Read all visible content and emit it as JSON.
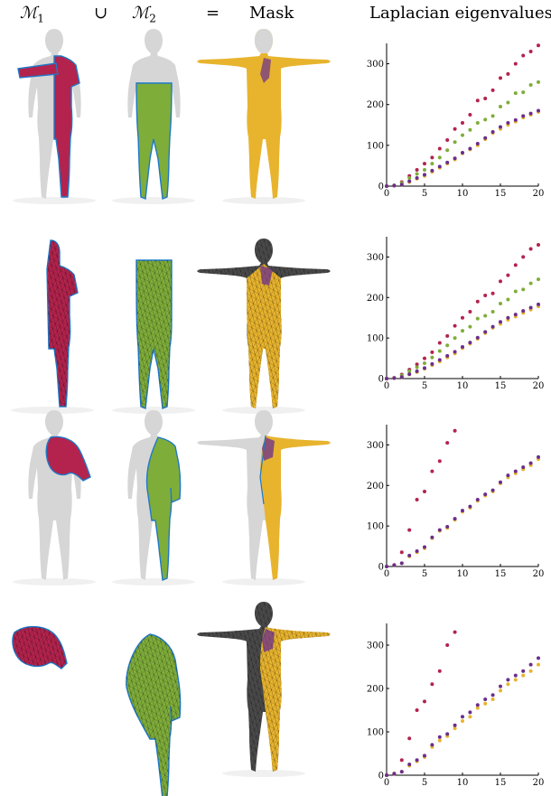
{
  "header": {
    "m1": "ℳ",
    "m1_sub": "1",
    "union": "∪",
    "m2": "ℳ",
    "m2_sub": "2",
    "equals": "=",
    "mask": "Mask",
    "eigen": "Laplacian eigenvalues"
  },
  "colors": {
    "m1": "#b3234d",
    "m2": "#7fad3a",
    "mask": "#e8b42e",
    "union": "#6a2e8c",
    "boundary": "#1f78c8",
    "gray": "#d6d6d6",
    "wire": "#1a1a1a"
  },
  "icons": [
    "human-mannequin-icon"
  ],
  "chart_data": [
    {
      "type": "scatter",
      "xlim": [
        0,
        20
      ],
      "ylim": [
        0,
        350
      ],
      "xticks": [
        "0",
        "5",
        "10",
        "15",
        "20"
      ],
      "yticks": [
        "0",
        "100",
        "200",
        "300"
      ],
      "series": [
        {
          "color": "#b3234d",
          "x": [
            0,
            1,
            2,
            3,
            4,
            5,
            6,
            7,
            8,
            9,
            10,
            11,
            12,
            13,
            14,
            15,
            16,
            17,
            18,
            19,
            20
          ],
          "y": [
            0,
            2,
            10,
            25,
            40,
            55,
            70,
            92,
            113,
            140,
            155,
            175,
            210,
            215,
            235,
            265,
            275,
            300,
            320,
            330,
            345
          ]
        },
        {
          "color": "#7fad3a",
          "x": [
            0,
            1,
            2,
            3,
            4,
            5,
            6,
            7,
            8,
            9,
            10,
            11,
            12,
            13,
            14,
            15,
            16,
            17,
            18,
            19,
            20
          ],
          "y": [
            0,
            2,
            8,
            20,
            30,
            40,
            55,
            70,
            88,
            108,
            125,
            138,
            155,
            163,
            172,
            195,
            205,
            228,
            230,
            248,
            255
          ]
        },
        {
          "color": "#e8b42e",
          "x": [
            0,
            1,
            2,
            3,
            4,
            5,
            6,
            7,
            8,
            9,
            10,
            11,
            12,
            13,
            14,
            15,
            16,
            17,
            18,
            19,
            20
          ],
          "y": [
            0,
            1,
            4,
            10,
            18,
            25,
            35,
            45,
            55,
            65,
            80,
            90,
            100,
            115,
            130,
            140,
            150,
            158,
            168,
            175,
            182
          ]
        },
        {
          "color": "#6a2e8c",
          "x": [
            0,
            1,
            2,
            3,
            4,
            5,
            6,
            7,
            8,
            9,
            10,
            11,
            12,
            13,
            14,
            15,
            16,
            17,
            18,
            19,
            20
          ],
          "y": [
            0,
            1,
            4,
            12,
            20,
            28,
            38,
            48,
            58,
            68,
            82,
            92,
            104,
            118,
            133,
            145,
            155,
            162,
            172,
            178,
            185
          ]
        }
      ]
    },
    {
      "type": "scatter",
      "xlim": [
        0,
        20
      ],
      "ylim": [
        0,
        350
      ],
      "xticks": [
        "0",
        "5",
        "10",
        "15",
        "20"
      ],
      "yticks": [
        "0",
        "100",
        "200",
        "300"
      ],
      "series": [
        {
          "color": "#b3234d",
          "x": [
            0,
            1,
            2,
            3,
            4,
            5,
            6,
            7,
            8,
            9,
            10,
            11,
            12,
            13,
            14,
            15,
            16,
            17,
            18,
            19,
            20
          ],
          "y": [
            0,
            2,
            10,
            22,
            35,
            50,
            65,
            88,
            105,
            130,
            150,
            165,
            190,
            205,
            210,
            240,
            255,
            280,
            300,
            320,
            330
          ]
        },
        {
          "color": "#7fad3a",
          "x": [
            0,
            1,
            2,
            3,
            4,
            5,
            6,
            7,
            8,
            9,
            10,
            11,
            12,
            13,
            14,
            15,
            16,
            17,
            18,
            19,
            20
          ],
          "y": [
            0,
            2,
            8,
            18,
            28,
            38,
            52,
            68,
            82,
            100,
            118,
            128,
            148,
            155,
            165,
            185,
            195,
            215,
            220,
            235,
            245
          ]
        },
        {
          "color": "#e8b42e",
          "x": [
            0,
            1,
            2,
            3,
            4,
            5,
            6,
            7,
            8,
            9,
            10,
            11,
            12,
            13,
            14,
            15,
            16,
            17,
            18,
            19,
            20
          ],
          "y": [
            0,
            1,
            4,
            10,
            16,
            24,
            33,
            42,
            52,
            62,
            75,
            86,
            98,
            112,
            125,
            135,
            145,
            153,
            162,
            170,
            178
          ]
        },
        {
          "color": "#6a2e8c",
          "x": [
            0,
            1,
            2,
            3,
            4,
            5,
            6,
            7,
            8,
            9,
            10,
            11,
            12,
            13,
            14,
            15,
            16,
            17,
            18,
            19,
            20
          ],
          "y": [
            0,
            1,
            4,
            11,
            18,
            26,
            36,
            46,
            56,
            66,
            78,
            89,
            101,
            115,
            128,
            140,
            150,
            158,
            167,
            175,
            183
          ]
        }
      ]
    },
    {
      "type": "scatter",
      "xlim": [
        0,
        20
      ],
      "ylim": [
        0,
        350
      ],
      "xticks": [
        "0",
        "5",
        "10",
        "15",
        "20"
      ],
      "yticks": [
        "0",
        "100",
        "200",
        "300"
      ],
      "series": [
        {
          "color": "#b3234d",
          "x": [
            0,
            1,
            2,
            3,
            4,
            5,
            6,
            7,
            8,
            9
          ],
          "y": [
            0,
            4,
            35,
            90,
            165,
            185,
            235,
            260,
            305,
            335
          ]
        },
        {
          "color": "#e8b42e",
          "x": [
            0,
            1,
            2,
            3,
            4,
            5,
            6,
            7,
            8,
            9,
            10,
            11,
            12,
            13,
            14,
            15,
            16,
            17,
            18,
            19,
            20
          ],
          "y": [
            0,
            3,
            8,
            25,
            35,
            45,
            70,
            88,
            95,
            115,
            135,
            145,
            162,
            175,
            185,
            205,
            220,
            230,
            240,
            250,
            265
          ]
        },
        {
          "color": "#6a2e8c",
          "x": [
            0,
            1,
            2,
            3,
            4,
            5,
            6,
            7,
            8,
            9,
            10,
            11,
            12,
            13,
            14,
            15,
            16,
            17,
            18,
            19,
            20
          ],
          "y": [
            0,
            3,
            8,
            27,
            38,
            48,
            72,
            90,
            98,
            118,
            138,
            148,
            165,
            178,
            188,
            208,
            225,
            235,
            245,
            255,
            270
          ]
        }
      ]
    },
    {
      "type": "scatter",
      "xlim": [
        0,
        20
      ],
      "ylim": [
        0,
        350
      ],
      "xticks": [
        "0",
        "5",
        "10",
        "15",
        "20"
      ],
      "yticks": [
        "0",
        "100",
        "200",
        "300"
      ],
      "series": [
        {
          "color": "#b3234d",
          "x": [
            0,
            1,
            2,
            3,
            4,
            5,
            6,
            7,
            8,
            9
          ],
          "y": [
            0,
            4,
            35,
            85,
            150,
            170,
            210,
            240,
            300,
            330
          ]
        },
        {
          "color": "#e8b42e",
          "x": [
            0,
            1,
            2,
            3,
            4,
            5,
            6,
            7,
            8,
            9,
            10,
            11,
            12,
            13,
            14,
            15,
            16,
            17,
            18,
            19,
            20
          ],
          "y": [
            0,
            3,
            8,
            22,
            32,
            42,
            65,
            80,
            90,
            108,
            125,
            135,
            155,
            165,
            175,
            195,
            210,
            220,
            230,
            240,
            255
          ]
        },
        {
          "color": "#6a2e8c",
          "x": [
            0,
            1,
            2,
            3,
            4,
            5,
            6,
            7,
            8,
            9,
            10,
            11,
            12,
            13,
            14,
            15,
            16,
            17,
            18,
            19,
            20
          ],
          "y": [
            0,
            3,
            8,
            25,
            35,
            45,
            70,
            88,
            95,
            115,
            135,
            145,
            162,
            175,
            185,
            205,
            220,
            230,
            240,
            255,
            270
          ]
        }
      ]
    }
  ]
}
